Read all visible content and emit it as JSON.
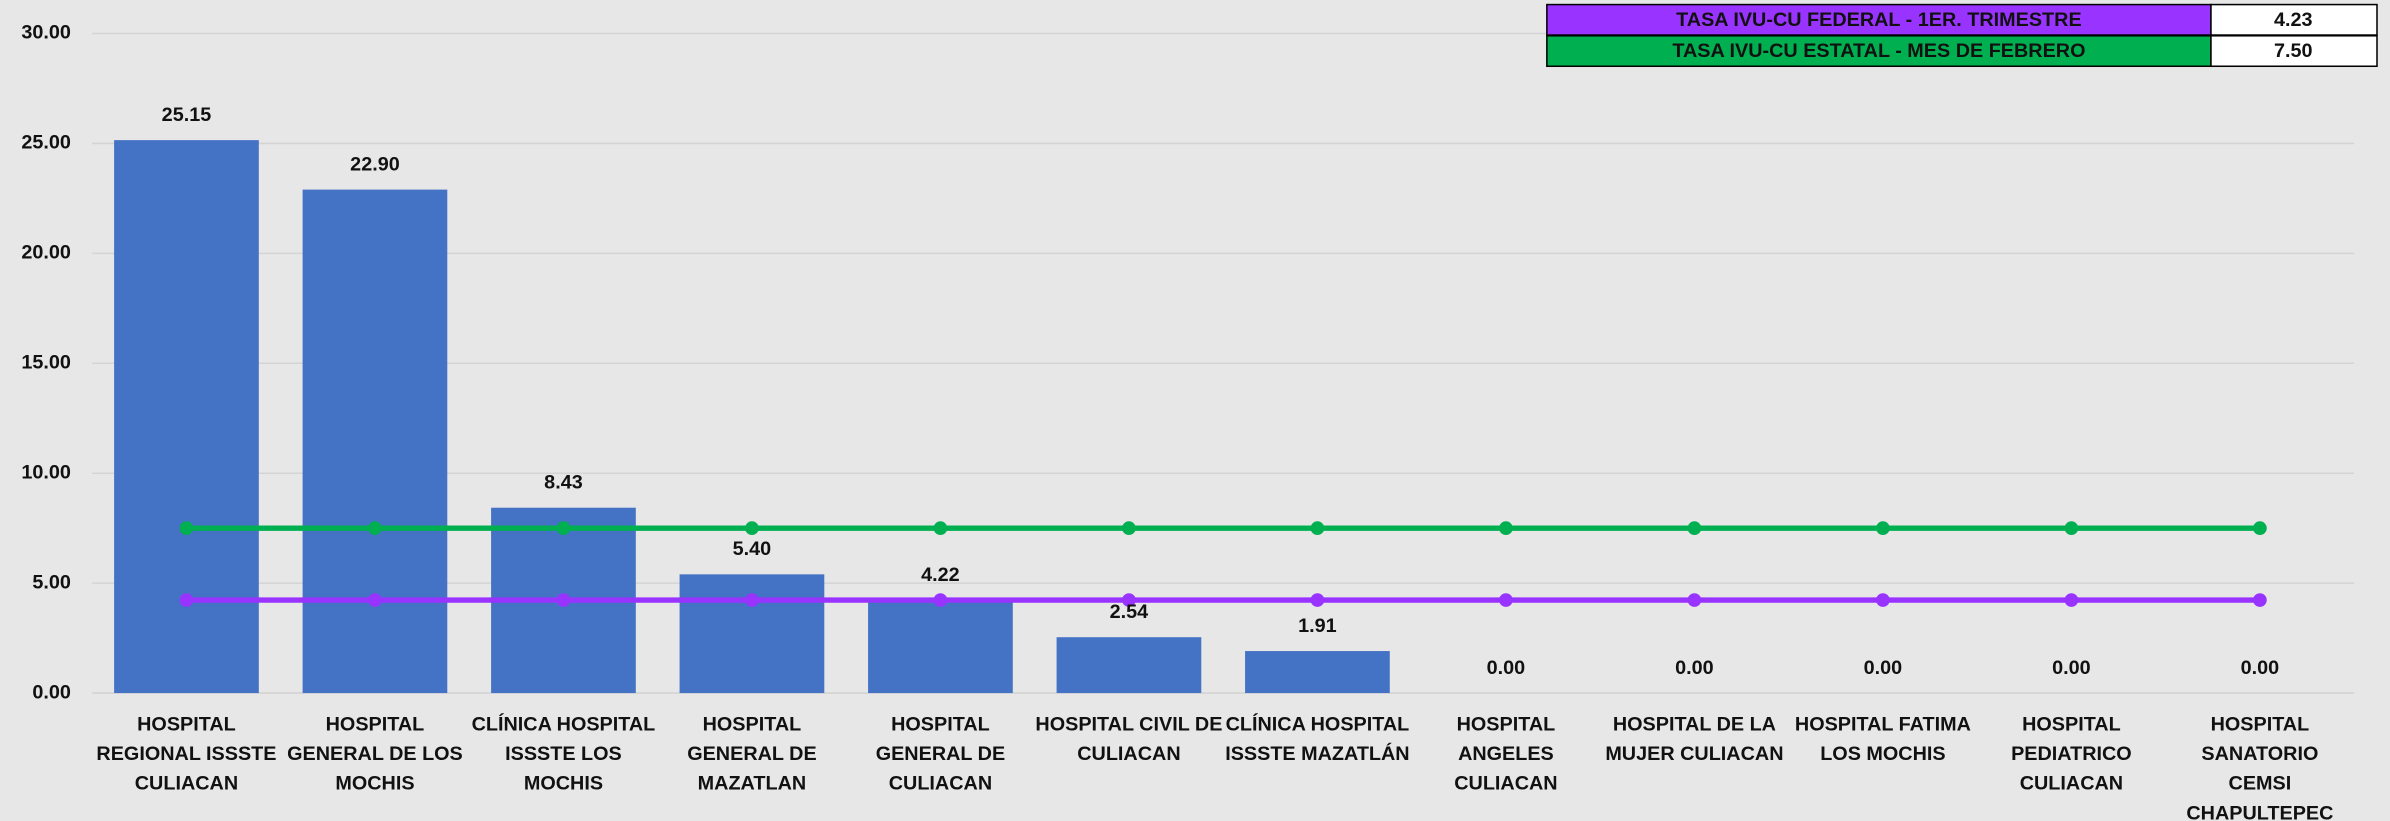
{
  "chart_data": {
    "type": "bar",
    "categories": [
      [
        "HOSPITAL",
        "REGIONAL ISSSTE",
        "CULIACAN"
      ],
      [
        "HOSPITAL",
        "GENERAL DE LOS",
        "MOCHIS"
      ],
      [
        "CLÍNICA HOSPITAL",
        "ISSSTE LOS",
        "MOCHIS"
      ],
      [
        "HOSPITAL",
        "GENERAL DE",
        "MAZATLAN"
      ],
      [
        "HOSPITAL",
        "GENERAL DE",
        "CULIACAN"
      ],
      [
        "HOSPITAL CIVIL DE",
        "CULIACAN"
      ],
      [
        "CLÍNICA HOSPITAL",
        "ISSSTE MAZATLÁN"
      ],
      [
        "HOSPITAL",
        "ANGELES",
        "CULIACAN"
      ],
      [
        "HOSPITAL DE LA",
        "MUJER CULIACAN"
      ],
      [
        "HOSPITAL FATIMA",
        "LOS MOCHIS"
      ],
      [
        "HOSPITAL",
        "PEDIATRICO",
        "CULIACAN"
      ],
      [
        "HOSPITAL",
        "SANATORIO",
        "CEMSI",
        "CHAPULTEPEC"
      ]
    ],
    "values": [
      25.15,
      22.9,
      8.43,
      5.4,
      4.22,
      2.54,
      1.91,
      0,
      0,
      0,
      0,
      0
    ],
    "value_labels": [
      "25.15",
      "22.90",
      "8.43",
      "5.40",
      "4.22",
      "2.54",
      "1.91",
      "0.00",
      "0.00",
      "0.00",
      "0.00",
      "0.00"
    ],
    "color": "#4472c4",
    "series": [
      {
        "name": "TASA IVU-CU FEDERAL -  1ER. TRIMESTRE",
        "color": "#9933ff",
        "rate": "4.23",
        "values": [
          4.23,
          4.23,
          4.23,
          4.23,
          4.23,
          4.23,
          4.23,
          4.23,
          4.23,
          4.23,
          4.23,
          4.23
        ]
      },
      {
        "name": "TASA IVU-CU  ESTATAL - MES DE FEBRERO",
        "color": "#00b050",
        "rate": "7.50",
        "values": [
          7.5,
          7.5,
          7.5,
          7.5,
          7.5,
          7.5,
          7.5,
          7.5,
          7.5,
          7.5,
          7.5,
          7.5
        ]
      }
    ],
    "ylim": [
      0,
      30
    ],
    "yticks": [
      {
        "value": 0,
        "label": "0.00"
      },
      {
        "value": 5,
        "label": "5.00"
      },
      {
        "value": 10,
        "label": "10.00"
      },
      {
        "value": 15,
        "label": "15.00"
      },
      {
        "value": 20,
        "label": "20.00"
      },
      {
        "value": 25,
        "label": "25.00"
      },
      {
        "value": 30,
        "label": "30.00"
      }
    ],
    "grid": true
  }
}
